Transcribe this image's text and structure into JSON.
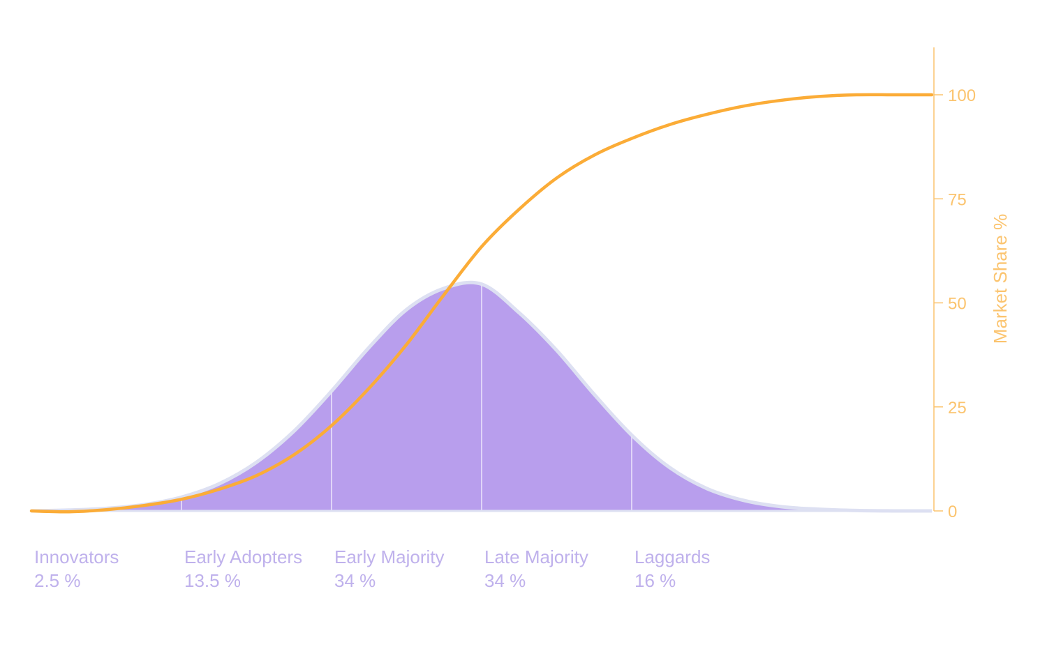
{
  "chart_data": {
    "type": "area",
    "title": "",
    "colors": {
      "area_fill": "#b89eed",
      "area_edge": "#dde0f2",
      "divider": "#ede6fb",
      "curve": "#fbac37",
      "axis": "#fbc46f",
      "category_text": "#bfb1ec"
    },
    "bell_curve": {
      "x": [
        0,
        0.5,
        1.0,
        1.5,
        2.0,
        2.5,
        3.0,
        3.5,
        4.0,
        4.5,
        5.0,
        5.5,
        6.0,
        6.5,
        7.0,
        7.5,
        8.0,
        8.5,
        9.0,
        9.5,
        10.0,
        10.5,
        11.0,
        11.5,
        12.0
      ],
      "values": [
        0.0,
        0.2,
        0.6,
        1.5,
        3.3,
        6.5,
        11.7,
        19.2,
        28.8,
        39.3,
        48.4,
        53.5,
        54.5,
        47.6,
        38.6,
        28.0,
        18.2,
        10.5,
        5.4,
        2.5,
        1.0,
        0.4,
        0.1,
        0.0,
        0.0
      ]
    },
    "s_curve": {
      "name": "Market Share %",
      "x": [
        0,
        0.5,
        1.0,
        1.5,
        2.0,
        2.5,
        3.0,
        3.5,
        4.0,
        4.5,
        5.0,
        5.5,
        6.0,
        6.5,
        7.0,
        7.5,
        8.0,
        8.5,
        9.0,
        9.5,
        10.0,
        10.5,
        11.0,
        11.5,
        12.0
      ],
      "values": [
        0,
        -0.2,
        0.3,
        1.3,
        2.8,
        5.2,
        8.5,
        13.5,
        20.5,
        29.5,
        40.0,
        52.0,
        63.5,
        72.5,
        80.0,
        85.5,
        89.5,
        92.8,
        95.3,
        97.3,
        98.7,
        99.6,
        100.0,
        100.0,
        100.0
      ]
    },
    "dividers_x": [
      2.0,
      4.0,
      6.0,
      8.0
    ],
    "categories": [
      {
        "name": "Innovators",
        "share": "2.5 %",
        "x": 0
      },
      {
        "name": "Early Adopters",
        "share": "13.5 %",
        "x": 2.0
      },
      {
        "name": "Early Majority",
        "share": "34 %",
        "x": 4.0
      },
      {
        "name": "Late Majority",
        "share": "34 %",
        "x": 6.0
      },
      {
        "name": "Laggards",
        "share": "16 %",
        "x": 8.0
      }
    ],
    "y_axis": {
      "label": "Market Share %",
      "position": "right",
      "ticks": [
        "0",
        "25",
        "50",
        "75",
        "100"
      ],
      "ylim": [
        0,
        112
      ]
    },
    "xlim": [
      0,
      12.0
    ]
  }
}
